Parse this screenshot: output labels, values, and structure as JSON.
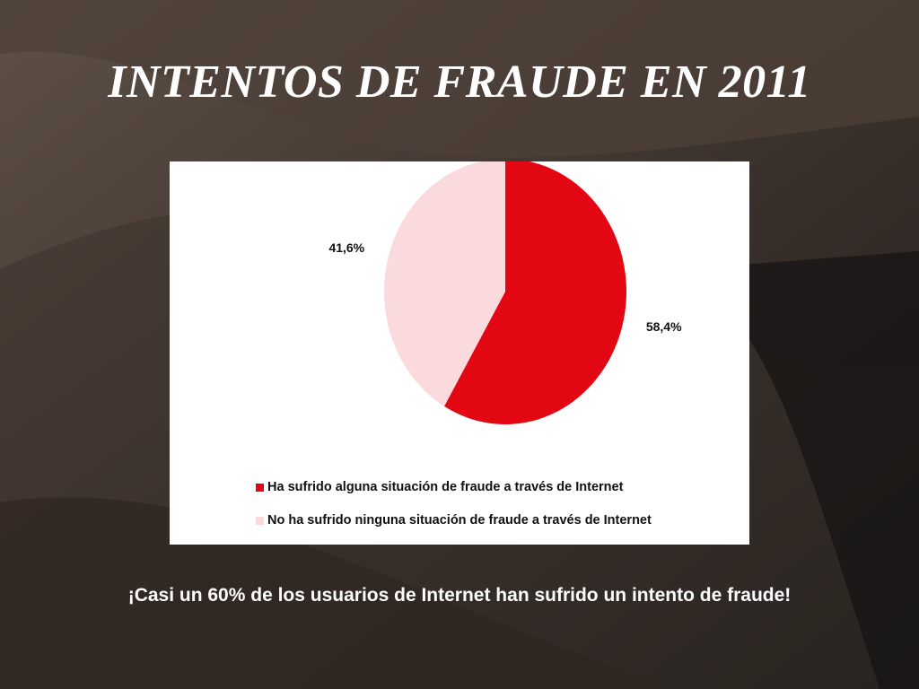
{
  "slide": {
    "title": "INTENTOS DE FRAUDE EN 2011",
    "caption": "¡Casi un 60% de los usuarios de Internet han sufrido un intento de fraude!"
  },
  "chart_data": {
    "type": "pie",
    "title": "",
    "slices": [
      {
        "label": "Ha sufrido alguna situación de fraude a través de Internet",
        "value": 58.4,
        "value_label": "58,4%",
        "color": "#e30613"
      },
      {
        "label": "No ha sufrido ninguna situación de fraude a través de Internet",
        "value": 41.6,
        "value_label": "41,6%",
        "color": "#fadadd"
      }
    ],
    "legend": {
      "placement": "bottom-left"
    }
  }
}
